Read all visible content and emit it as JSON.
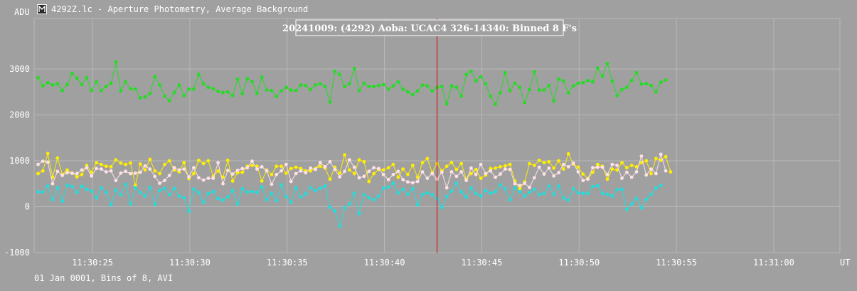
{
  "window": {
    "title": "4292Z.lc - Aperture Photometry, Average Background",
    "footer": "01 Jan 0001, Bins of 8, AVI"
  },
  "icons": {
    "app": "lightcurve-app-icon"
  },
  "chart_data": {
    "type": "line",
    "title": "20241009: (4292) Aoba: UCAC4 326-14340: Binned 8 F's",
    "ylabel": "ADU",
    "xlabel": "UT",
    "ylim": [
      -1000,
      4100
    ],
    "yticks": [
      -1000,
      0,
      1000,
      2000,
      3000
    ],
    "xlim": [
      22.0,
      63.4
    ],
    "xticks": [
      {
        "t": 25,
        "label": "11:30:25"
      },
      {
        "t": 30,
        "label": "11:30:30"
      },
      {
        "t": 35,
        "label": "11:30:35"
      },
      {
        "t": 40,
        "label": "11:30:40"
      },
      {
        "t": 45,
        "label": "11:30:45"
      },
      {
        "t": 50,
        "label": "11:30:50"
      },
      {
        "t": 55,
        "label": "11:30:55"
      },
      {
        "t": 60,
        "label": "11:31:00"
      }
    ],
    "x_start": 22.2,
    "x_step": 0.25,
    "marker_time": 42.7,
    "marker_color": "#d00000",
    "grid": true,
    "series": [
      {
        "color": "#22dd22",
        "values": [
          2810,
          2630,
          2700,
          2650,
          2680,
          2530,
          2660,
          2900,
          2800,
          2660,
          2810,
          2530,
          2720,
          2530,
          2620,
          2690,
          3150,
          2520,
          2720,
          2570,
          2560,
          2370,
          2390,
          2460,
          2830,
          2650,
          2410,
          2310,
          2490,
          2650,
          2420,
          2560,
          2560,
          2880,
          2680,
          2600,
          2570,
          2510,
          2490,
          2500,
          2420,
          2780,
          2460,
          2790,
          2720,
          2470,
          2820,
          2540,
          2530,
          2400,
          2520,
          2600,
          2540,
          2530,
          2650,
          2640,
          2550,
          2650,
          2680,
          2620,
          2280,
          2950,
          2880,
          2620,
          2680,
          3010,
          2530,
          2690,
          2620,
          2620,
          2640,
          2660,
          2560,
          2630,
          2720,
          2560,
          2500,
          2440,
          2520,
          2650,
          2630,
          2520,
          2600,
          2620,
          2240,
          2630,
          2600,
          2410,
          2880,
          2950,
          2740,
          2830,
          2680,
          2410,
          2230,
          2480,
          2920,
          2530,
          2690,
          2600,
          2270,
          2550,
          2940,
          2540,
          2540,
          2640,
          2300,
          2780,
          2740,
          2480,
          2630,
          2690,
          2700,
          2750,
          2720,
          3020,
          2840,
          3120,
          2740,
          2420,
          2550,
          2600,
          2750,
          2920,
          2670,
          2680,
          2640,
          2500,
          2710,
          2760
        ]
      },
      {
        "color": "#ffee00",
        "values": [
          720,
          780,
          1160,
          640,
          1060,
          700,
          800,
          730,
          650,
          700,
          900,
          750,
          960,
          920,
          880,
          870,
          1020,
          950,
          920,
          950,
          460,
          930,
          800,
          1030,
          780,
          720,
          920,
          1000,
          800,
          760,
          960,
          610,
          720,
          1010,
          940,
          1000,
          660,
          780,
          640,
          1010,
          560,
          740,
          750,
          880,
          900,
          880,
          560,
          800,
          700,
          880,
          880,
          730,
          830,
          860,
          830,
          780,
          780,
          830,
          880,
          840,
          600,
          860,
          730,
          1130,
          800,
          720,
          1020,
          980,
          550,
          720,
          810,
          800,
          850,
          920,
          640,
          820,
          700,
          900,
          640,
          960,
          1050,
          740,
          940,
          780,
          880,
          960,
          810,
          940,
          600,
          720,
          810,
          620,
          690,
          830,
          840,
          870,
          890,
          920,
          560,
          390,
          540,
          940,
          900,
          1010,
          960,
          980,
          840,
          1000,
          820,
          1150,
          930,
          860,
          710,
          610,
          750,
          920,
          880,
          600,
          820,
          800,
          960,
          850,
          900,
          870,
          960,
          1000,
          720,
          1050,
          1010,
          1090,
          760
        ]
      },
      {
        "color": "#ffe0e6",
        "values": [
          920,
          990,
          970,
          500,
          770,
          680,
          740,
          730,
          720,
          800,
          850,
          670,
          830,
          820,
          760,
          780,
          570,
          730,
          770,
          720,
          730,
          750,
          890,
          820,
          660,
          510,
          570,
          680,
          850,
          800,
          820,
          650,
          850,
          630,
          580,
          620,
          620,
          960,
          500,
          790,
          710,
          790,
          830,
          850,
          990,
          820,
          870,
          780,
          490,
          700,
          780,
          920,
          550,
          720,
          780,
          740,
          840,
          810,
          960,
          870,
          980,
          810,
          650,
          770,
          1020,
          860,
          630,
          660,
          770,
          850,
          830,
          700,
          590,
          700,
          770,
          590,
          540,
          520,
          550,
          760,
          620,
          720,
          600,
          750,
          410,
          760,
          660,
          760,
          570,
          840,
          700,
          920,
          720,
          780,
          640,
          710,
          820,
          810,
          500,
          460,
          510,
          420,
          630,
          860,
          710,
          840,
          670,
          740,
          920,
          870,
          950,
          760,
          570,
          600,
          850,
          860,
          860,
          700,
          920,
          900,
          620,
          750,
          640,
          760,
          1100,
          690,
          820,
          720,
          1140,
          780
        ]
      },
      {
        "color": "#22dddd",
        "values": [
          320,
          320,
          450,
          150,
          420,
          120,
          470,
          440,
          310,
          450,
          380,
          340,
          190,
          410,
          310,
          40,
          360,
          260,
          490,
          60,
          410,
          310,
          230,
          420,
          50,
          350,
          400,
          260,
          400,
          230,
          190,
          -100,
          380,
          310,
          100,
          290,
          330,
          180,
          140,
          210,
          350,
          60,
          390,
          320,
          330,
          310,
          430,
          150,
          290,
          130,
          480,
          220,
          100,
          410,
          210,
          280,
          420,
          350,
          400,
          450,
          -10,
          -90,
          -420,
          -30,
          60,
          290,
          -150,
          260,
          190,
          150,
          230,
          400,
          430,
          510,
          300,
          380,
          270,
          390,
          40,
          270,
          300,
          260,
          180,
          -20,
          220,
          340,
          510,
          320,
          210,
          410,
          290,
          230,
          350,
          290,
          330,
          480,
          390,
          150,
          410,
          330,
          230,
          310,
          380,
          260,
          290,
          450,
          270,
          450,
          190,
          140,
          390,
          300,
          290,
          290,
          440,
          460,
          290,
          270,
          230,
          370,
          380,
          -60,
          60,
          180,
          -30,
          160,
          270,
          400,
          460
        ]
      }
    ]
  }
}
